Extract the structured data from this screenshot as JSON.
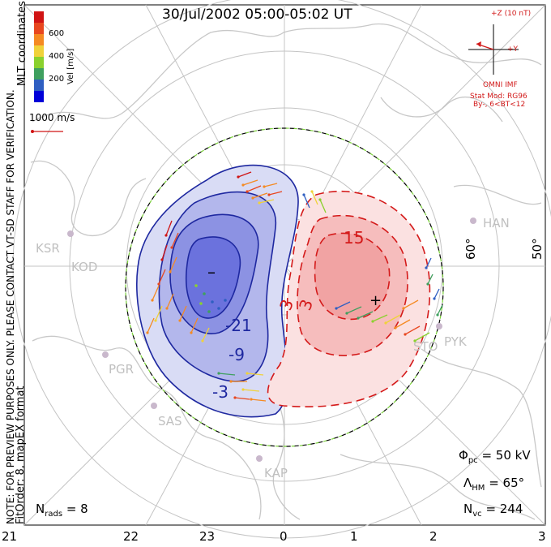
{
  "title": "30/Jul/2002 05:00-05:02 UT",
  "disclaimer": "NOTE: FOR PREVIEW PURPOSES ONLY. PLEASE CONTACT VT-SD STAFF FOR VERIFICATION.",
  "format_note": "FitOrder: 8, mapEX format",
  "coords_label": "MLT coordinates",
  "colorbar": {
    "label": "Vel [m/s]",
    "ticks": [
      "600",
      "400",
      "200"
    ],
    "colors": [
      "#0000d8",
      "#2f5fc2",
      "#3fa05f",
      "#8ad12e",
      "#f0d23a",
      "#f58a22",
      "#e8471f",
      "#d01414"
    ]
  },
  "reference_vector_label": "1000 m/s",
  "imf": {
    "bz_label": "+Z (10 nT)",
    "by_label": "+Y",
    "source_label": "OMNI IMF",
    "model_label": "Stat Mod: RG96",
    "condition_label": "By-, 6<BT<12",
    "color": "#d21a1a"
  },
  "latitude_labels": [
    "60°",
    "50°"
  ],
  "mlt_labels": [
    "21",
    "22",
    "23",
    "0",
    "1",
    "2",
    "3"
  ],
  "stations": [
    "KSR",
    "KOD",
    "PGR",
    "SAS",
    "KAP",
    "PYK",
    "HAN",
    "STO"
  ],
  "contours": {
    "negative_cell": {
      "color": "#1e28a0",
      "fill": "#6b72dd",
      "labels": [
        "-21",
        "-9",
        "-3"
      ],
      "focus_symbol": "–"
    },
    "positive_cell": {
      "color": "#d41a1a",
      "fill": "#f1a3a3",
      "labels": [
        "15",
        "3",
        "3"
      ],
      "focus_symbol": "+"
    },
    "boundary_color": "#7bd23a"
  },
  "stats": {
    "phi_pc_label": "Φ",
    "phi_pc_sub": "pc",
    "phi_pc_value": "= 50 kV",
    "lambda_label": "Λ",
    "lambda_sub": "HM",
    "lambda_value": "= 65°",
    "nvc_label": "N",
    "nvc_sub": "vc",
    "nvc_value": "= 244",
    "nrads_label": "N",
    "nrads_sub": "rads",
    "nrads_value": "= 8"
  }
}
